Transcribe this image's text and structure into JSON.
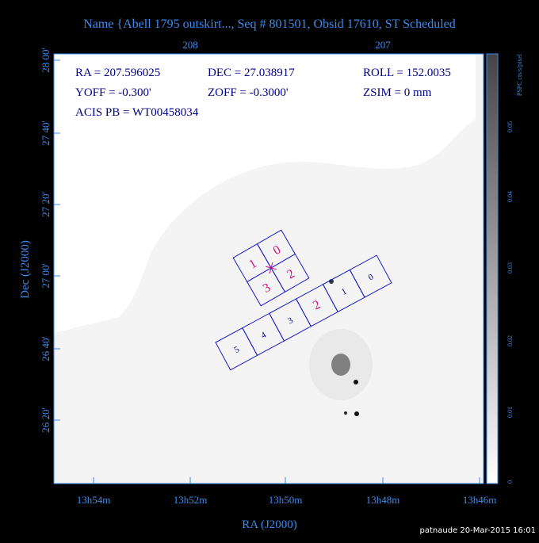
{
  "header": {
    "title": "Name {Abell 1795 outskirt..., Seq # 801501, Obsid 17610, ST Scheduled"
  },
  "plot": {
    "info": [
      [
        "RA = 207.596025",
        "DEC = 27.038917",
        "ROLL = 152.0035"
      ],
      [
        "YOFF =  -0.300'",
        "ZOFF = -0.3000'",
        "ZSIM = 0 mm"
      ],
      [
        "ACIS PB = WT00458034"
      ]
    ],
    "top_ticks": [
      "208",
      "207"
    ],
    "bottom_ticks": [
      "13h54m",
      "13h52m",
      "13h50m",
      "13h48m",
      "13h46m"
    ],
    "left_ticks": [
      "28 00'",
      "27 40'",
      "27 20'",
      "27 00'",
      "26 40'",
      "26 20'"
    ],
    "x_label": "RA (J2000)",
    "y_label": "Dec (J2000)",
    "acis_s_chips": [
      "5",
      "4",
      "3",
      "2",
      "1",
      "0"
    ],
    "acis_i_chips": [
      "1",
      "0",
      "3",
      "2"
    ]
  },
  "colorbar": {
    "label": "PSPC cts/s/pixel",
    "ticks": [
      "0.05",
      "0.04",
      "0.03",
      "0.02",
      "0.01",
      "0"
    ]
  },
  "footer": {
    "stamp": "patnaude 20-Mar-2015 16:01"
  }
}
